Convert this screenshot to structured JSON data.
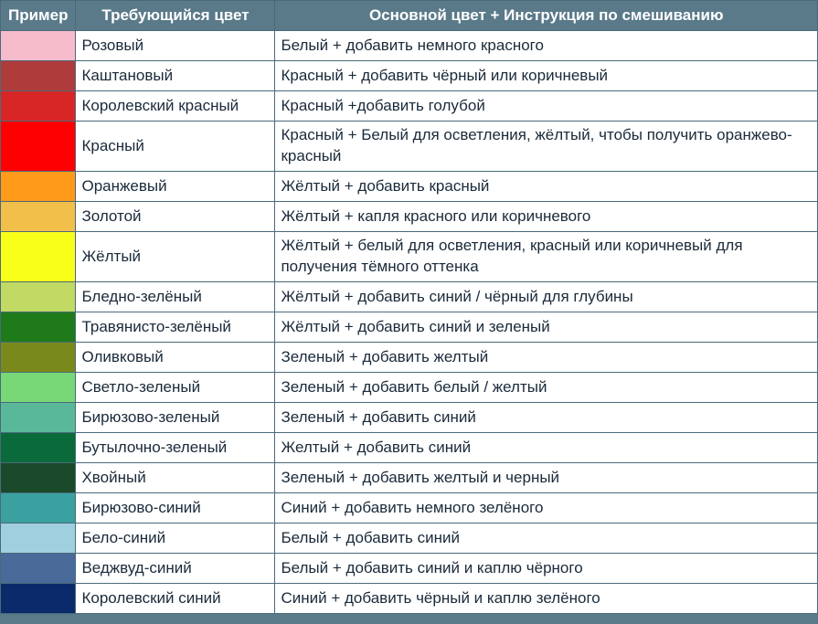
{
  "headers": {
    "col_sample": "Пример",
    "col_name": "Требующийся цвет",
    "col_instruction": "Основной цвет + Инструкция по смешиванию"
  },
  "rows": [
    {
      "swatch": "#f7bccc",
      "name": "Розовый",
      "instruction": "Белый + добавить немного красного",
      "double": false
    },
    {
      "swatch": "#b03b3b",
      "name": "Каштановый",
      "instruction": "Красный + добавить чёрный или коричневый",
      "double": false
    },
    {
      "swatch": "#d82626",
      "name": "Королевский красный",
      "instruction": "Красный +добавить голубой",
      "double": false
    },
    {
      "swatch": "#ff0000",
      "name": "Красный",
      "instruction": "Красный + Белый для осветления, жёлтый, чтобы получить оранжево-красный",
      "double": true
    },
    {
      "swatch": "#ff9a1a",
      "name": "Оранжевый",
      "instruction": "Жёлтый + добавить красный",
      "double": false
    },
    {
      "swatch": "#f2c04a",
      "name": "Золотой",
      "instruction": "Жёлтый + капля красного или коричневого",
      "double": false
    },
    {
      "swatch": "#faff1a",
      "name": "Жёлтый",
      "instruction": "Жёлтый + белый для осветления, красный или коричневый для получения тёмного оттенка",
      "double": true
    },
    {
      "swatch": "#c1da63",
      "name": "Бледно-зелёный",
      "instruction": "Жёлтый + добавить синий / чёрный для глубины",
      "double": false
    },
    {
      "swatch": "#1f7a1a",
      "name": "Травянисто-зелёный",
      "instruction": "Жёлтый + добавить синий и зеленый",
      "double": false
    },
    {
      "swatch": "#7a8a1a",
      "name": "Оливковый",
      "instruction": "Зеленый + добавить желтый",
      "double": false
    },
    {
      "swatch": "#78d878",
      "name": "Светло-зеленый",
      "instruction": "Зеленый + добавить белый / желтый",
      "double": false
    },
    {
      "swatch": "#5ab89a",
      "name": "Бирюзово-зеленый",
      "instruction": "Зеленый + добавить синий",
      "double": false
    },
    {
      "swatch": "#0a6a3a",
      "name": "Бутылочно-зеленый",
      "instruction": "Желтый + добавить синий",
      "double": false
    },
    {
      "swatch": "#1a4a2a",
      "name": "Хвойный",
      "instruction": "Зеленый + добавить желтый и черный",
      "double": false
    },
    {
      "swatch": "#3aa0a0",
      "name": "Бирюзово-синий",
      "instruction": "Синий + добавить немного зелёного",
      "double": false
    },
    {
      "swatch": "#a0d0e0",
      "name": "Бело-синий",
      "instruction": "Белый + добавить синий",
      "double": false
    },
    {
      "swatch": "#4a6a9a",
      "name": "Веджвуд-синий",
      "instruction": "Белый + добавить синий и каплю чёрного",
      "double": false
    },
    {
      "swatch": "#0a2a6a",
      "name": "Королевский синий",
      "instruction": "Синий + добавить чёрный и каплю зелёного",
      "double": false
    }
  ],
  "style": {
    "header_bg": "#5a7a8a",
    "header_color": "#ffffff",
    "cell_bg": "#ffffff",
    "cell_color": "#1a2a3a",
    "border_color": "#4a6a7a",
    "header_fontsize": 17,
    "cell_fontsize": 17
  }
}
